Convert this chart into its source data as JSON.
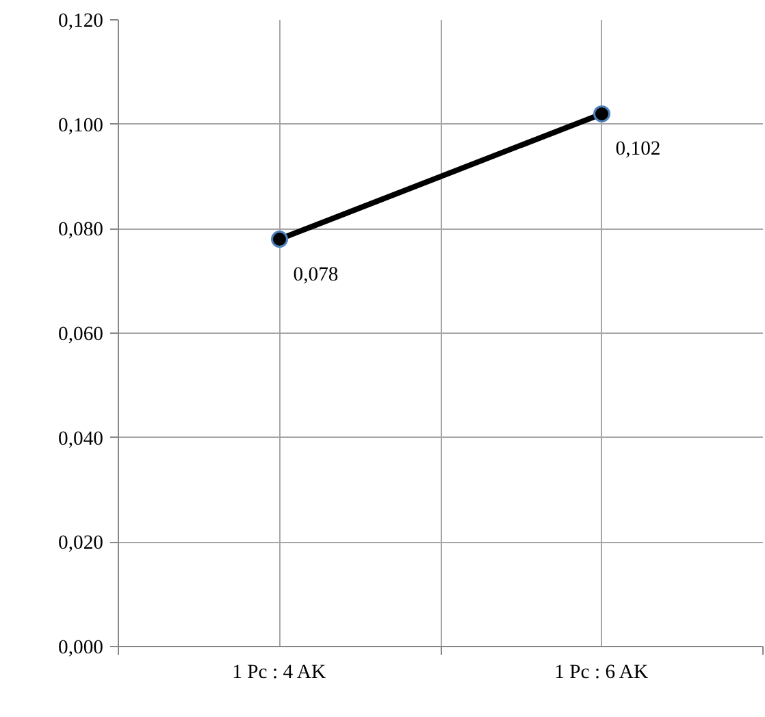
{
  "chart_data": {
    "type": "line",
    "categories": [
      "1 Pc : 4 AK",
      "1 Pc : 6 AK"
    ],
    "series": [
      {
        "color": "#000000",
        "values": [
          0.078,
          0.102
        ],
        "value_labels": [
          "0,078",
          "0,102"
        ]
      }
    ],
    "ylim": [
      0,
      0.12
    ],
    "yticks": [
      {
        "value": 0,
        "label": "0,000"
      },
      {
        "value": 0.02,
        "label": "0,020"
      },
      {
        "value": 0.04,
        "label": "0,040"
      },
      {
        "value": 0.06,
        "label": "0,060"
      },
      {
        "value": 0.08,
        "label": "0,080"
      },
      {
        "value": 0.1,
        "label": "0,100"
      },
      {
        "value": 0.12,
        "label": "0,120"
      }
    ],
    "grid": true,
    "marker": "circle",
    "line_style": "solid"
  }
}
